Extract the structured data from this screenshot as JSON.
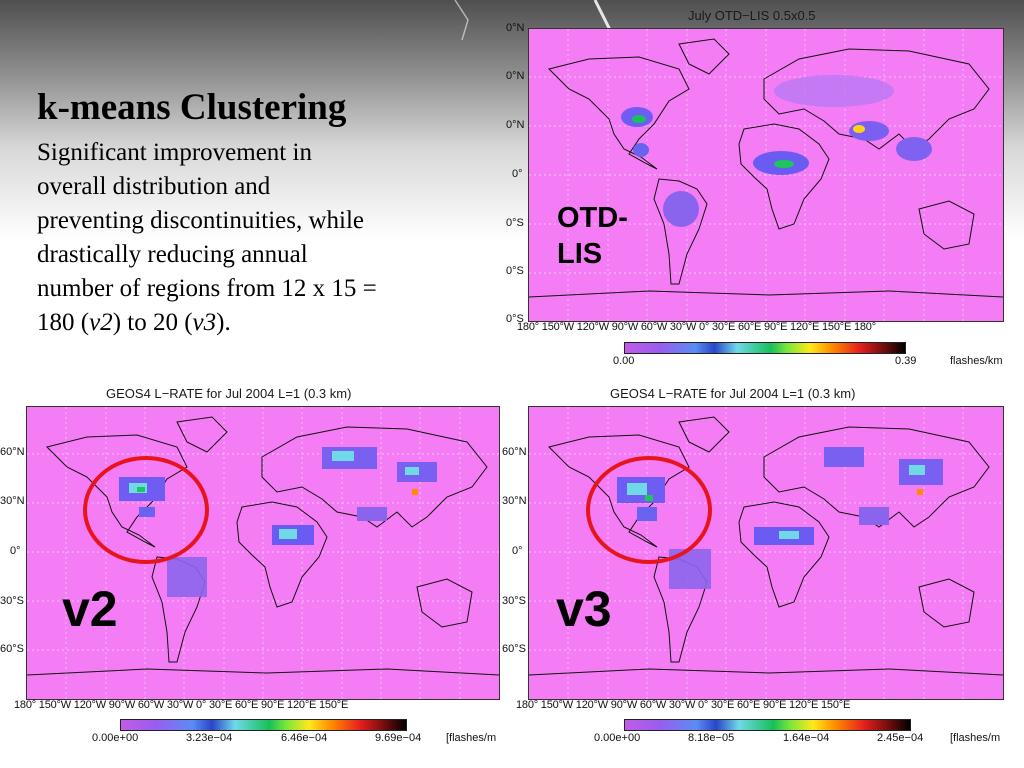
{
  "slide": {
    "headline": "k-means Clustering",
    "body_lines": [
      "Significant improvement in",
      "overall distribution and",
      "preventing discontinuities, while",
      "drastically reducing annual",
      "number of regions from 12 x 15 =",
      "180 (",
      "v2",
      ") to 20 (",
      "v3",
      ")."
    ]
  },
  "colors": {
    "map_background": "#f47cf4",
    "circle": "#e8141c",
    "land_outline": "#111111"
  },
  "maps": {
    "otd": {
      "title": "July OTD−LIS 0.5x0.5",
      "label_line1": "OTD-",
      "label_line2": "LIS",
      "lat_labels": [
        "0°N",
        "0°N",
        "0°N",
        "0°",
        "0°S",
        "0°S",
        "0°S"
      ],
      "lon_labels": "180° 150°W 120°W 90°W 60°W 30°W 0° 30°E 60°E 90°E 120°E 150°E 180°",
      "colorbar_ticks": [
        "0.00",
        "0.39"
      ],
      "colorbar_unit": "flashes/km"
    },
    "v2": {
      "title": "GEOS4 L−RATE for Jul 2004 L=1 (0.3 km)",
      "label": "v2",
      "lat_labels": [
        "60°N",
        "30°N",
        "0°",
        "30°S",
        "60°S"
      ],
      "lon_labels": "180° 150°W 120°W 90°W 60°W 30°W 0° 30°E 60°E 90°E 120°E 150°E",
      "colorbar_ticks": [
        "0.00e+00",
        "3.23e−04",
        "6.46e−04",
        "9.69e−04"
      ],
      "colorbar_unit": "[flashes/m"
    },
    "v3": {
      "title": "GEOS4 L−RATE for Jul 2004 L=1 (0.3 km)",
      "label": "v3",
      "lat_labels": [
        "60°N",
        "30°N",
        "0°",
        "30°S",
        "60°S"
      ],
      "lon_labels": "180° 150°W 120°W 90°W 60°W 30°W 0° 30°E 60°E 90°E 120°E 150°E",
      "colorbar_ticks": [
        "0.00e+00",
        "8.18e−05",
        "1.64e−04",
        "2.45e−04"
      ],
      "colorbar_unit": "[flashes/m"
    }
  }
}
